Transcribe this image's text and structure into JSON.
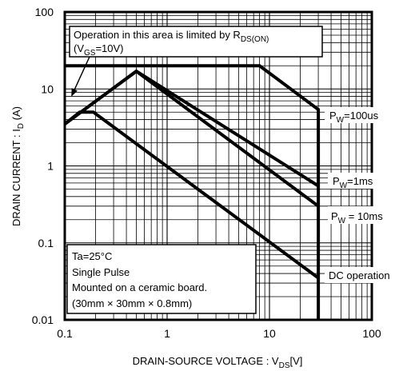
{
  "chart_data": {
    "type": "line",
    "x_scale": "log",
    "y_scale": "log",
    "xlim": [
      0.1,
      100
    ],
    "ylim": [
      0.01,
      100
    ],
    "grid": true,
    "x_ticks": [
      "0.1",
      "1",
      "10",
      "100"
    ],
    "y_ticks": [
      "100",
      "10",
      "1",
      "0.1",
      "0.01"
    ],
    "xlabel": {
      "main": "DRAIN-SOURCE VOLTAGE : V",
      "sub": "DS",
      "tail": "[V]"
    },
    "ylabel": {
      "main": "DRAIN CURRENT : I",
      "sub": "D",
      "tail": " (A)"
    },
    "series": [
      {
        "name": "PW=100us",
        "x": [
          0.1,
          0.55,
          8,
          30,
          30
        ],
        "y": [
          20,
          20,
          20,
          5.4,
          0.01
        ]
      },
      {
        "name": "PW=1ms",
        "x": [
          0.1,
          0.5,
          30
        ],
        "y": [
          3.5,
          17,
          0.55
        ]
      },
      {
        "name": "PW=10ms",
        "x": [
          0.1,
          0.5,
          30
        ],
        "y": [
          3.5,
          17,
          0.3
        ]
      },
      {
        "name": "DC operation",
        "x": [
          0.1,
          0.14,
          0.19,
          30
        ],
        "y": [
          3.5,
          5,
          5,
          0.035
        ]
      }
    ],
    "labels": {
      "pw100": {
        "pre": "P",
        "sub": "W",
        "post": "=100us"
      },
      "pw1": {
        "pre": "P",
        "sub": "W",
        "post": "=1ms"
      },
      "pw10": {
        "pre": "P",
        "sub": "W",
        "post": " = 10ms"
      },
      "dc": "DC operation"
    },
    "annotations": {
      "limit_line1": {
        "main": "Operation in this area is limited by R",
        "sub": "DS(ON)"
      },
      "limit_line2": {
        "pre": "(V",
        "sub": "GS",
        "post": "=10V)"
      },
      "conditions": [
        "Ta=25°C",
        "Single Pulse",
        "Mounted on a ceramic board.",
        "(30mm × 30mm × 0.8mm)"
      ]
    }
  }
}
